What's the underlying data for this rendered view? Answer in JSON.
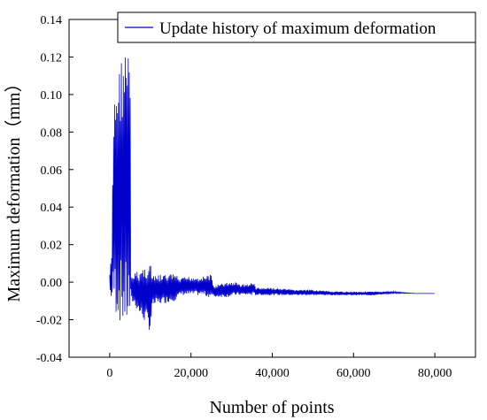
{
  "chart_data": {
    "type": "line",
    "xlabel": "Number of points",
    "ylabel": "Maximum deformation（mm）",
    "xlim": [
      -10000,
      90000
    ],
    "ylim": [
      -0.04,
      0.14
    ],
    "x_ticks": [
      "0",
      "20,000",
      "40,000",
      "60,000",
      "80,000"
    ],
    "x_tick_values": [
      0,
      20000,
      40000,
      60000,
      80000
    ],
    "y_ticks": [
      "-0.04",
      "-0.02",
      "0.00",
      "0.02",
      "0.04",
      "0.06",
      "0.08",
      "0.10",
      "0.12",
      "0.14"
    ],
    "y_tick_values": [
      -0.04,
      -0.02,
      0.0,
      0.02,
      0.04,
      0.06,
      0.08,
      0.1,
      0.12,
      0.14
    ],
    "grid": false,
    "legend_position": "top-right",
    "series": [
      {
        "name": "Update history of maximum deformation",
        "color": "#0000cc",
        "envelope": {
          "x": [
            0,
            500,
            1000,
            1500,
            2000,
            2500,
            3000,
            3500,
            4000,
            4500,
            5000,
            5200,
            6000,
            7000,
            8000,
            9000,
            10000,
            10500,
            12000,
            14000,
            16000,
            17000,
            17500,
            19000,
            21000,
            23000,
            24000,
            25000,
            25500,
            27000,
            29000,
            31000,
            32000,
            34000,
            35500,
            36000,
            40000,
            45000,
            50000,
            55000,
            60000,
            65000,
            70000,
            75000,
            80000
          ],
          "high": [
            0.005,
            0.016,
            0.1,
            0.108,
            0.113,
            0.118,
            0.122,
            0.127,
            0.126,
            0.125,
            0.125,
            0.003,
            0.005,
            0.006,
            0.008,
            0.009,
            0.012,
            0.003,
            0.004,
            0.004,
            0.005,
            0.002,
            0.002,
            0.003,
            0.003,
            0.003,
            0.004,
            0.004,
            -0.002,
            -0.001,
            0.0,
            0.0,
            -0.001,
            -0.001,
            0.0,
            -0.003,
            -0.003,
            -0.004,
            -0.004,
            -0.005,
            -0.005,
            -0.005,
            -0.005,
            -0.006,
            -0.006
          ],
          "low": [
            -0.005,
            -0.01,
            -0.015,
            -0.018,
            -0.02,
            -0.022,
            -0.024,
            -0.026,
            -0.027,
            -0.025,
            -0.026,
            -0.01,
            -0.012,
            -0.016,
            -0.02,
            -0.022,
            -0.027,
            -0.013,
            -0.012,
            -0.011,
            -0.01,
            -0.008,
            -0.007,
            -0.007,
            -0.007,
            -0.007,
            -0.008,
            -0.008,
            -0.008,
            -0.008,
            -0.008,
            -0.007,
            -0.007,
            -0.007,
            -0.007,
            -0.007,
            -0.007,
            -0.007,
            -0.007,
            -0.007,
            -0.007,
            -0.007,
            -0.006,
            -0.006,
            -0.006
          ]
        }
      }
    ]
  }
}
